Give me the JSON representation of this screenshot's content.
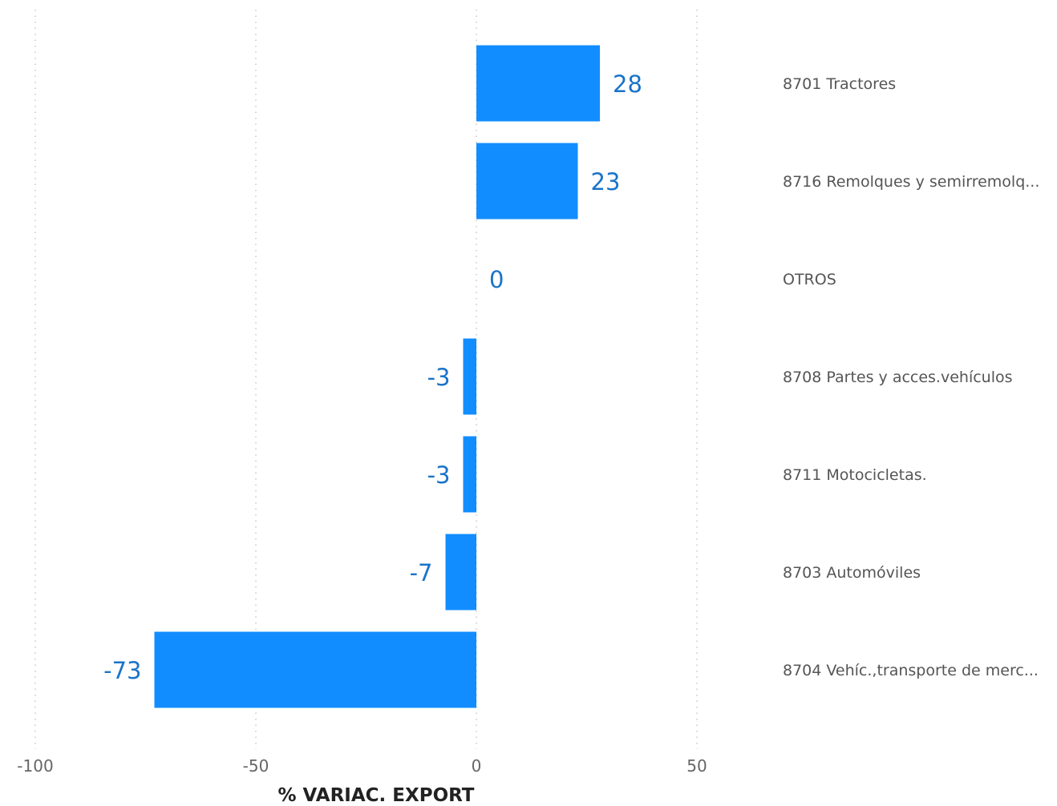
{
  "chart_data": {
    "type": "bar",
    "orientation": "horizontal",
    "categories": [
      "8701 Tractores",
      "8716 Remolques y semirremolq...",
      "OTROS",
      "8708 Partes y acces.vehículos",
      "8711 Motocicletas.",
      "8703 Automóviles",
      "8704 Vehíc.,transporte de merc..."
    ],
    "values": [
      28,
      23,
      0,
      -3,
      -3,
      -7,
      -73
    ],
    "value_labels": [
      "28",
      "23",
      "0",
      "-3",
      "-3",
      "-7",
      "-73"
    ],
    "xlim": [
      -100,
      50
    ],
    "xticks": [
      -100,
      -50,
      0,
      50
    ],
    "xtick_labels": [
      "-100",
      "-50",
      "0",
      "50"
    ],
    "xlabel": "% VARIAC. EXPORT",
    "grid": true,
    "legend": "none",
    "category_labels_position": "right",
    "colors": {
      "bar": "#118dff",
      "data_label": "#1a73c8",
      "tick_label": "#666666",
      "category_label": "#555555",
      "axis_title": "#222222",
      "grid": "#c8c8c8"
    }
  }
}
